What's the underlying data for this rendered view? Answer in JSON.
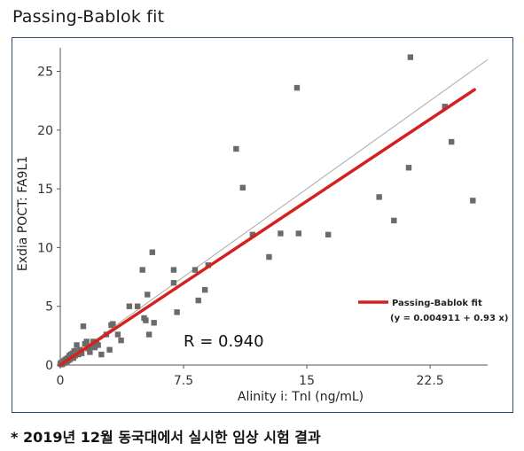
{
  "page": {
    "title": "Passing-Bablok fit",
    "footnote": "* 2019년 12월 동국대에서 실시한 임상 시험 결과"
  },
  "chart_data": {
    "type": "scatter",
    "title": "",
    "xlabel": "Alinity i: TnI (ng/mL)",
    "ylabel": "Exdia POCT: FA9L1",
    "xlim": [
      0,
      26
    ],
    "ylim": [
      0,
      27
    ],
    "x_ticks": [
      0,
      7.5,
      15,
      22.5
    ],
    "x_tick_labels": [
      "0",
      "7.5",
      "15",
      "22.5"
    ],
    "y_ticks": [
      0,
      5,
      10,
      15,
      20,
      25
    ],
    "y_tick_labels": [
      "0",
      "5",
      "10",
      "15",
      "20",
      "25"
    ],
    "grid": false,
    "annotation": "R = 0.940",
    "legend": {
      "position": "bottom-right",
      "label": "Passing-Bablok fit",
      "equation": "(y = 0.004911 + 0.93 x)"
    },
    "colors": {
      "points": "#6b6b6b",
      "fit": "#d62020",
      "identity": "#aaaaaa"
    },
    "series": [
      {
        "name": "",
        "kind": "scatter",
        "points": [
          [
            0.0,
            0.1
          ],
          [
            0.05,
            0.2
          ],
          [
            0.1,
            0.05
          ],
          [
            0.15,
            0.3
          ],
          [
            0.2,
            0.15
          ],
          [
            0.25,
            0.4
          ],
          [
            0.3,
            0.2
          ],
          [
            0.35,
            0.5
          ],
          [
            0.4,
            0.3
          ],
          [
            0.45,
            0.6
          ],
          [
            0.5,
            0.4
          ],
          [
            0.55,
            0.8
          ],
          [
            0.6,
            0.5
          ],
          [
            0.65,
            0.9
          ],
          [
            0.7,
            0.7
          ],
          [
            0.75,
            1.0
          ],
          [
            0.8,
            0.6
          ],
          [
            0.85,
            1.2
          ],
          [
            0.9,
            0.8
          ],
          [
            1.0,
            1.0
          ],
          [
            1.0,
            1.7
          ],
          [
            1.1,
            0.9
          ],
          [
            1.2,
            1.3
          ],
          [
            1.3,
            1.0
          ],
          [
            1.4,
            3.3
          ],
          [
            1.5,
            1.8
          ],
          [
            1.6,
            2.0
          ],
          [
            1.7,
            1.4
          ],
          [
            1.8,
            1.1
          ],
          [
            1.9,
            1.6
          ],
          [
            2.0,
            2.0
          ],
          [
            2.1,
            1.5
          ],
          [
            2.2,
            1.9
          ],
          [
            2.3,
            1.7
          ],
          [
            2.5,
            0.9
          ],
          [
            2.8,
            2.6
          ],
          [
            3.0,
            1.3
          ],
          [
            3.1,
            3.4
          ],
          [
            3.2,
            3.5
          ],
          [
            3.5,
            2.6
          ],
          [
            3.7,
            2.1
          ],
          [
            4.2,
            5.0
          ],
          [
            4.7,
            5.0
          ],
          [
            5.0,
            8.1
          ],
          [
            5.1,
            4.0
          ],
          [
            5.2,
            3.8
          ],
          [
            5.3,
            6.0
          ],
          [
            5.4,
            2.6
          ],
          [
            5.6,
            9.6
          ],
          [
            5.7,
            3.6
          ],
          [
            6.9,
            8.1
          ],
          [
            6.9,
            7.0
          ],
          [
            7.1,
            4.5
          ],
          [
            8.2,
            8.1
          ],
          [
            8.4,
            5.5
          ],
          [
            8.8,
            6.4
          ],
          [
            9.0,
            8.5
          ],
          [
            10.7,
            18.4
          ],
          [
            11.1,
            15.1
          ],
          [
            11.7,
            11.1
          ],
          [
            12.7,
            9.2
          ],
          [
            13.4,
            11.2
          ],
          [
            14.4,
            23.6
          ],
          [
            14.5,
            11.2
          ],
          [
            16.3,
            11.1
          ],
          [
            19.4,
            14.3
          ],
          [
            20.3,
            12.3
          ],
          [
            21.2,
            16.8
          ],
          [
            21.3,
            26.2
          ],
          [
            23.4,
            22.0
          ],
          [
            23.8,
            19.0
          ],
          [
            25.1,
            14.0
          ]
        ]
      },
      {
        "name": "",
        "kind": "identity",
        "x": [
          0,
          26
        ],
        "y": [
          0,
          26
        ]
      },
      {
        "name": "Passing-Bablok fit",
        "kind": "fit",
        "intercept": 0.004911,
        "slope": 0.93,
        "x": [
          0,
          25.2
        ]
      }
    ]
  }
}
